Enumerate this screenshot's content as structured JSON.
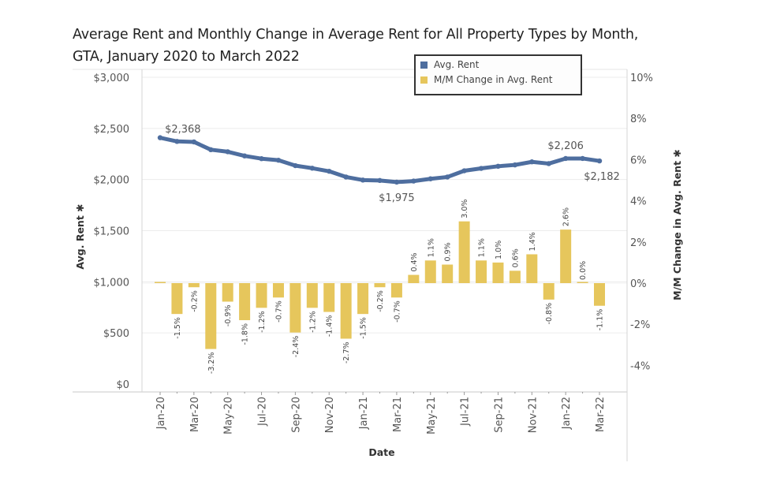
{
  "title_line1": "Average Rent and Monthly Change in Average Rent for All Property Types by Month,",
  "title_line2": "GTA, January 2020 to March 2022",
  "colors": {
    "line": "#4e6e9f",
    "bar": "#e6c65c",
    "grid": "#ececec",
    "axis": "#d4d4d4",
    "text": "#555555"
  },
  "chart_data": {
    "type": "bar+line",
    "title": "Average Rent and Monthly Change in Average Rent for All Property Types by Month, GTA, January 2020 to March 2022",
    "xlabel": "Date",
    "ylabel_left": "Avg. Rent",
    "ylabel_right": "M/M Change in Avg. Rent",
    "legend": {
      "position": "top-right",
      "entries": [
        "Avg. Rent",
        "M/M Change in Avg. Rent"
      ]
    },
    "ylim_left": [
      0,
      3000
    ],
    "ylim_right": [
      -4.5,
      10
    ],
    "left_ticks": [
      "$0",
      "$500",
      "$1,000",
      "$1,500",
      "$2,000",
      "$2,500",
      "$3,000"
    ],
    "left_tick_values": [
      0,
      500,
      1000,
      1500,
      2000,
      2500,
      3000
    ],
    "right_ticks": [
      "-4%",
      "-2%",
      "0%",
      "2%",
      "4%",
      "6%",
      "8%",
      "10%"
    ],
    "right_tick_values": [
      -4,
      -2,
      0,
      2,
      4,
      6,
      8,
      10
    ],
    "x_tick_labels": [
      "Jan-20",
      "Mar-20",
      "May-20",
      "Jul-20",
      "Sep-20",
      "Nov-20",
      "Jan-21",
      "Mar-21",
      "May-21",
      "Jul-21",
      "Sep-21",
      "Nov-21",
      "Jan-22",
      "Mar-22"
    ],
    "categories": [
      "Jan-20",
      "Feb-20",
      "Mar-20",
      "Apr-20",
      "May-20",
      "Jun-20",
      "Jul-20",
      "Aug-20",
      "Sep-20",
      "Oct-20",
      "Nov-20",
      "Dec-20",
      "Jan-21",
      "Feb-21",
      "Mar-21",
      "Apr-21",
      "May-21",
      "Jun-21",
      "Jul-21",
      "Aug-21",
      "Sep-21",
      "Oct-21",
      "Nov-21",
      "Dec-21",
      "Jan-22",
      "Feb-22",
      "Mar-22"
    ],
    "series": [
      {
        "name": "Avg. Rent",
        "type": "line",
        "axis": "left",
        "values": [
          2409,
          2373,
          2368,
          2292,
          2272,
          2231,
          2204,
          2189,
          2136,
          2111,
          2081,
          2025,
          1995,
          1991,
          1975,
          1985,
          2007,
          2025,
          2086,
          2109,
          2130,
          2143,
          2173,
          2156,
          2206,
          2206,
          2182
        ],
        "labels": [
          {
            "index": 2,
            "text": "$2,368",
            "pos": "above"
          },
          {
            "index": 14,
            "text": "$1,975",
            "pos": "below"
          },
          {
            "index": 24,
            "text": "$2,206",
            "pos": "above"
          },
          {
            "index": 26,
            "text": "$2,182",
            "pos": "below"
          }
        ]
      },
      {
        "name": "M/M Change in Avg. Rent",
        "type": "bar",
        "axis": "right",
        "values": [
          0.0,
          -1.5,
          -0.2,
          -3.2,
          -0.9,
          -1.8,
          -1.2,
          -0.7,
          -2.4,
          -1.2,
          -1.4,
          -2.7,
          -1.5,
          -0.2,
          -0.7,
          0.4,
          1.1,
          0.9,
          3.0,
          1.1,
          1.0,
          0.6,
          1.4,
          -0.8,
          2.6,
          0.0,
          -1.1
        ],
        "data_labels": [
          "",
          "-1.5%",
          "-0.2%",
          "-3.2%",
          "-0.9%",
          "-1.8%",
          "-1.2%",
          "-0.7%",
          "-2.4%",
          "-1.2%",
          "-1.4%",
          "-2.7%",
          "-1.5%",
          "-0.2%",
          "-0.7%",
          "0.4%",
          "1.1%",
          "0.9%",
          "3.0%",
          "1.1%",
          "1.0%",
          "0.6%",
          "1.4%",
          "-0.8%",
          "2.6%",
          "0.0%",
          "-1.1%"
        ]
      }
    ],
    "grid": true
  },
  "legend_items": [
    "Avg. Rent",
    "M/M Change in Avg. Rent"
  ]
}
